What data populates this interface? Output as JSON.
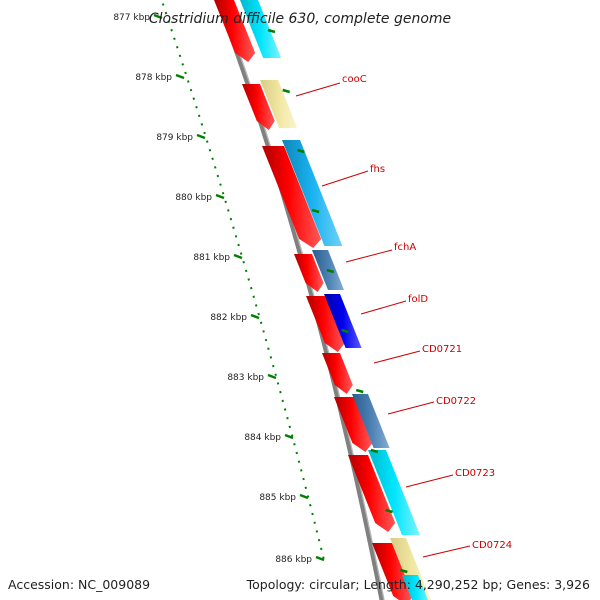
{
  "title": "Clostridium difficile 630, complete genome",
  "accession": "Accession: NC_009089",
  "stats": "Topology: circular; Length: 4,290,252 bp; Genes: 3,926",
  "ruler": {
    "labels": [
      "877 kbp",
      "878 kbp",
      "879 kbp",
      "880 kbp",
      "881 kbp",
      "882 kbp",
      "883 kbp",
      "884 kbp",
      "885 kbp",
      "886 kbp"
    ]
  },
  "colors": {
    "cds": "#ff0000",
    "cyan": "#00e5ff",
    "sky": "#19b2f0",
    "steel": "#4a80b3",
    "blue": "#0000ee",
    "tan": "#f0e6a0",
    "backbone": "#808080",
    "ticks": "#008000",
    "labels": "#cc0000"
  },
  "gene_labels": [
    "cooC",
    "fhs",
    "fchA",
    "folD",
    "CD0721",
    "CD0722",
    "CD0723",
    "CD0724"
  ]
}
